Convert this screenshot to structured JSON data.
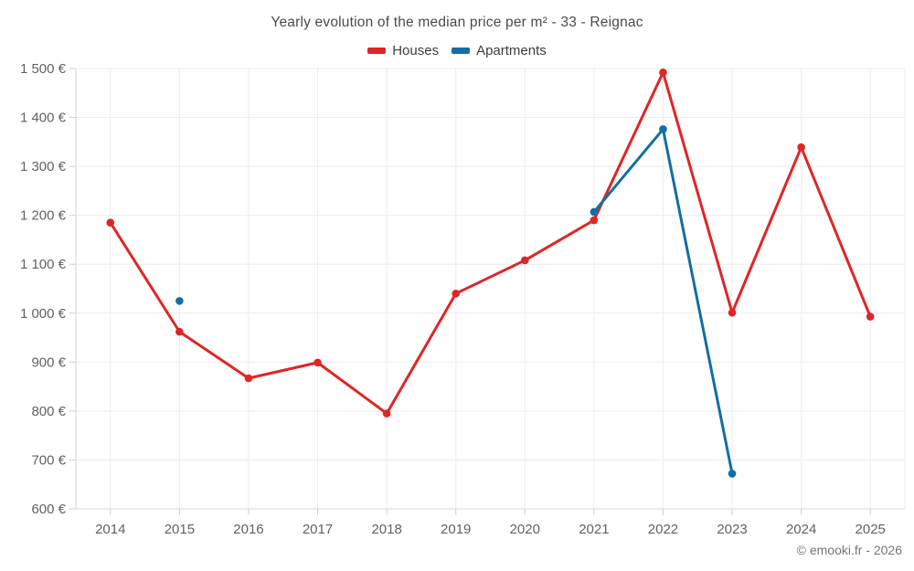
{
  "title": "Yearly evolution of the median price per m² - 33 - Reignac",
  "copyright": "© emooki.fr - 2026",
  "colors": {
    "houses": "#e02525",
    "apartments": "#126ea4",
    "gridline": "#ececec",
    "axis_line": "#d6d6d6",
    "tick": "#cfcfcf",
    "axis_text": "#616161",
    "title_text": "#4a4a4a",
    "legend_text": "#3d3d3d",
    "background": "#ffffff"
  },
  "chart_data": {
    "type": "line",
    "title": "Yearly evolution of the median price per m² - 33 - Reignac",
    "categories": [
      "2014",
      "2015",
      "2016",
      "2017",
      "2018",
      "2019",
      "2020",
      "2021",
      "2022",
      "2023",
      "2024",
      "2025"
    ],
    "series": [
      {
        "name": "Houses",
        "color": "#e02525",
        "values": [
          1185,
          962,
          867,
          899,
          795,
          1040,
          1108,
          1190,
          1492,
          1001,
          1339,
          993
        ]
      },
      {
        "name": "Apartments",
        "color": "#126ea4",
        "values": [
          null,
          1025,
          null,
          null,
          null,
          null,
          null,
          1207,
          1376,
          672,
          null,
          null
        ]
      }
    ],
    "xlabel": "",
    "ylabel": "",
    "ylim": [
      600,
      1500
    ],
    "ytick_step": 100,
    "yticks": [
      {
        "value": 600,
        "label": "600 €"
      },
      {
        "value": 700,
        "label": "700 €"
      },
      {
        "value": 800,
        "label": "800 €"
      },
      {
        "value": 900,
        "label": "900 €"
      },
      {
        "value": 1000,
        "label": "1 000 €"
      },
      {
        "value": 1100,
        "label": "1 100 €"
      },
      {
        "value": 1200,
        "label": "1 200 €"
      },
      {
        "value": 1300,
        "label": "1 300 €"
      },
      {
        "value": 1400,
        "label": "1 400 €"
      },
      {
        "value": 1500,
        "label": "1 500 €"
      }
    ],
    "grid": true,
    "legend_position": "top",
    "currency_suffix": "€"
  }
}
